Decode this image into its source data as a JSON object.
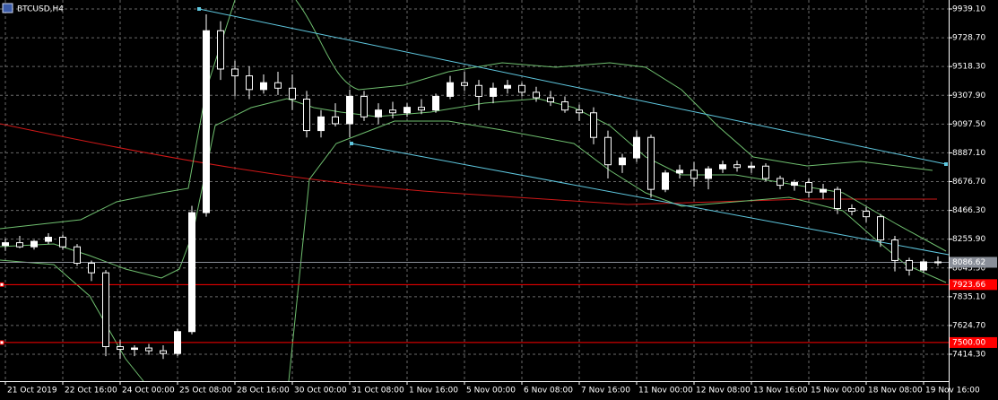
{
  "chart_data": {
    "type": "candlestick",
    "title": "BTCUSD,H4",
    "categories": [
      "21 Oct 2019",
      null,
      null,
      null,
      "22 Oct 16:00",
      null,
      null,
      null,
      "24 Oct 00:00",
      null,
      null,
      null,
      "25 Oct 08:00",
      null,
      null,
      null,
      "28 Oct 16:00",
      null,
      null,
      null,
      "30 Oct 00:00",
      null,
      null,
      null,
      "31 Oct 08:00",
      null,
      null,
      null,
      "1 Nov 16:00",
      null,
      null,
      null,
      "5 Nov 00:00",
      null,
      null,
      null,
      "6 Nov 08:00",
      null,
      null,
      null,
      "7 Nov 16:00",
      null,
      null,
      null,
      "11 Nov 00:00",
      null,
      null,
      null,
      "12 Nov 08:00",
      null,
      null,
      null,
      "13 Nov 16:00",
      null,
      null,
      null,
      "15 Nov 00:00",
      null,
      null,
      null,
      "18 Nov 08:00",
      null,
      null,
      null,
      "19 Nov 16:00",
      null
    ],
    "open": [
      8210,
      8230,
      8200,
      8240,
      8270,
      8200,
      8080,
      8010,
      7470,
      7450,
      7460,
      7440,
      7420,
      7580,
      8450,
      9780,
      9500,
      9450,
      9350,
      9400,
      9360,
      9280,
      9050,
      9150,
      9100,
      9300,
      9150,
      9200,
      9180,
      9220,
      9200,
      9300,
      9400,
      9380,
      9300,
      9360,
      9380,
      9330,
      9290,
      9260,
      9200,
      9180,
      9000,
      8800,
      8850,
      9000,
      8620,
      8740,
      8760,
      8700,
      8770,
      8800,
      8780,
      8790,
      8700,
      8650,
      8670,
      8600,
      8620,
      8480,
      8460,
      8420,
      8250,
      8100,
      8030,
      8090
    ],
    "high": [
      8260,
      8280,
      8250,
      8300,
      8290,
      8220,
      8100,
      8030,
      7520,
      7480,
      7490,
      7480,
      7600,
      8500,
      9900,
      9850,
      9560,
      9520,
      9460,
      9480,
      9460,
      9340,
      9200,
      9250,
      9350,
      9340,
      9250,
      9260,
      9250,
      9280,
      9320,
      9450,
      9480,
      9420,
      9400,
      9420,
      9400,
      9370,
      9340,
      9300,
      9240,
      9220,
      9050,
      8880,
      9050,
      9020,
      8760,
      8800,
      8820,
      8790,
      8830,
      8830,
      8820,
      8810,
      8720,
      8690,
      8700,
      8660,
      8640,
      8510,
      8490,
      8440,
      8280,
      8120,
      8110,
      8130
    ],
    "low": [
      8170,
      8190,
      8180,
      8220,
      8180,
      8060,
      7950,
      7400,
      7380,
      7400,
      7410,
      7380,
      7400,
      7560,
      8420,
      9420,
      9300,
      9280,
      9320,
      9310,
      9200,
      9000,
      9000,
      9080,
      9000,
      9120,
      9100,
      9140,
      9150,
      9170,
      9180,
      9280,
      9340,
      9200,
      9250,
      9320,
      9300,
      9260,
      9230,
      9180,
      9120,
      8950,
      8700,
      8740,
      8820,
      8560,
      8600,
      8700,
      8640,
      8620,
      8740,
      8750,
      8740,
      8680,
      8620,
      8610,
      8560,
      8550,
      8440,
      8430,
      8380,
      8200,
      8020,
      7990,
      8010,
      8060
    ],
    "close": [
      8230,
      8200,
      8240,
      8270,
      8200,
      8080,
      8010,
      7470,
      7450,
      7460,
      7440,
      7420,
      7580,
      8450,
      9780,
      9500,
      9450,
      9350,
      9400,
      9360,
      9280,
      9050,
      9150,
      9100,
      9300,
      9150,
      9200,
      9180,
      9220,
      9200,
      9300,
      9400,
      9380,
      9300,
      9360,
      9380,
      9330,
      9290,
      9260,
      9200,
      9180,
      9000,
      8800,
      8850,
      9000,
      8620,
      8740,
      8760,
      8700,
      8770,
      8800,
      8780,
      8790,
      8700,
      8650,
      8670,
      8600,
      8620,
      8480,
      8460,
      8420,
      8250,
      8100,
      8030,
      8090,
      8086.62
    ],
    "up_color": "#ffffff",
    "down_color": "#000000",
    "ylim": [
      7217.6,
      10004.7
    ],
    "yticks": [
      {
        "value": 9939.1,
        "label": "9939.10"
      },
      {
        "value": 9728.7,
        "label": "9728.70"
      },
      {
        "value": 9518.3,
        "label": "9518.30"
      },
      {
        "value": 9307.9,
        "label": "9307.90"
      },
      {
        "value": 9097.5,
        "label": "9097.50"
      },
      {
        "value": 8887.1,
        "label": "8887.10"
      },
      {
        "value": 8676.7,
        "label": "8676.70"
      },
      {
        "value": 8466.3,
        "label": "8466.30"
      },
      {
        "value": 8255.9,
        "label": "8255.90"
      },
      {
        "value": 8045.5,
        "label": "8045.50"
      },
      {
        "value": 7835.1,
        "label": "7835.10"
      },
      {
        "value": 7624.7,
        "label": "7624.70"
      },
      {
        "value": 7414.3,
        "label": "7414.30"
      }
    ],
    "grid": true,
    "levels": [
      {
        "value": 7923.66,
        "label": "7923.66",
        "color": "#ff0000"
      },
      {
        "value": 7500,
        "label": "7500.00",
        "color": "#ff0000"
      }
    ],
    "current_price": {
      "value": 8086.62,
      "label": "8086.62",
      "color": "#8a8f99"
    }
  }
}
